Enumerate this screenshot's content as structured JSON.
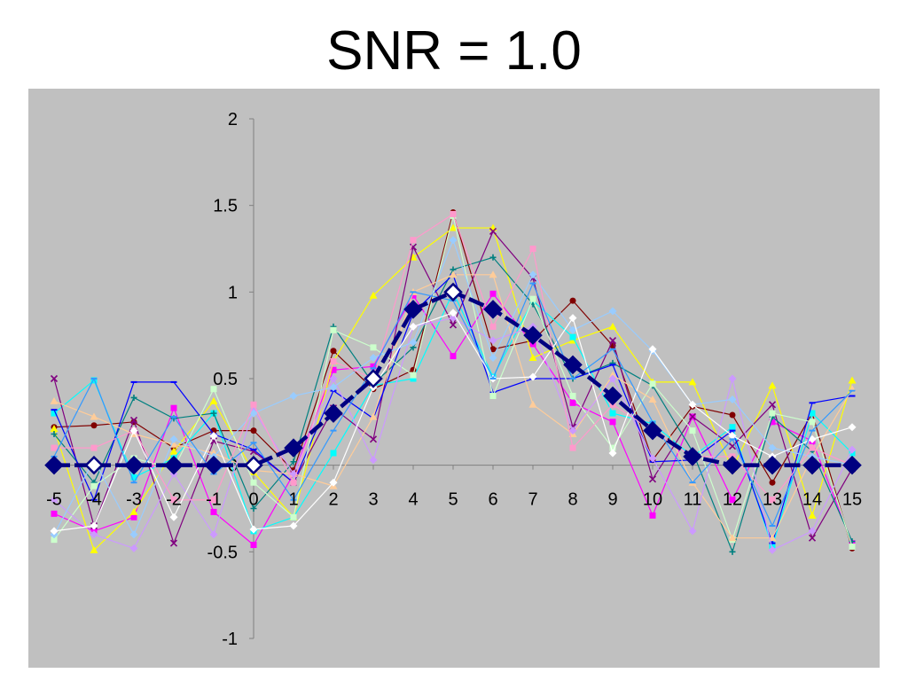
{
  "chart_data": {
    "type": "line",
    "title": "SNR = 1.0",
    "xlabel": "",
    "ylabel": "",
    "x": [
      -5,
      -4,
      -3,
      -2,
      -1,
      0,
      1,
      2,
      3,
      4,
      5,
      6,
      7,
      8,
      9,
      10,
      11,
      12,
      13,
      14,
      15
    ],
    "xlim": [
      -5,
      15
    ],
    "ylim": [
      -1,
      2
    ],
    "yticks": [
      -1,
      -0.5,
      0,
      0.5,
      1,
      1.5,
      2
    ],
    "ytick_labels": [
      "-1",
      "-0.5",
      "0",
      "0.5",
      "1",
      "1.5",
      "2"
    ],
    "xtick_labels": [
      "-5",
      "-4",
      "-3",
      "-2",
      "-1",
      "0",
      "1",
      "2",
      "3",
      "4",
      "5",
      "6",
      "7",
      "8",
      "9",
      "10",
      "11",
      "12",
      "13",
      "14",
      "15"
    ],
    "grid": false,
    "legend": "none",
    "reference_series": {
      "color": "#000080",
      "values": [
        0,
        0,
        0,
        0,
        0,
        0,
        0.1,
        0.3,
        0.5,
        0.9,
        1.0,
        0.9,
        0.75,
        0.58,
        0.4,
        0.2,
        0.05,
        0,
        0,
        0,
        0
      ]
    },
    "series": [
      {
        "color": "#ff00ff",
        "marker": "square",
        "values": [
          -0.28,
          -0.38,
          -0.3,
          0.33,
          -0.27,
          -0.46,
          -0.05,
          0.55,
          0.57,
          0.98,
          0.63,
          0.99,
          0.7,
          0.36,
          0.25,
          -0.29,
          0.28,
          -0.2,
          0.25,
          0.14,
          -0.45
        ]
      },
      {
        "color": "#800000",
        "marker": "circle",
        "values": [
          0.22,
          0.23,
          0.25,
          0.1,
          0.2,
          0.2,
          -0.03,
          0.66,
          0.44,
          0.55,
          1.46,
          0.67,
          0.72,
          0.95,
          0.69,
          0.03,
          0.34,
          0.29,
          -0.1,
          0.3,
          -0.48
        ]
      },
      {
        "color": "#ffff00",
        "marker": "triangle",
        "values": [
          0.21,
          -0.49,
          -0.27,
          0.08,
          0.37,
          -0.04,
          -0.3,
          0.6,
          0.98,
          1.2,
          1.37,
          1.37,
          0.62,
          0.72,
          0.8,
          0.48,
          0.48,
          -0.02,
          0.46,
          -0.29,
          0.49
        ]
      },
      {
        "color": "#00ffff",
        "marker": "square",
        "values": [
          0.3,
          0.49,
          -0.07,
          0.04,
          0.3,
          -0.38,
          -0.3,
          0.07,
          0.46,
          0.5,
          1.0,
          0.51,
          0.95,
          0.74,
          0.3,
          0.24,
          0.05,
          0.22,
          -0.47,
          0.3,
          0.07
        ]
      },
      {
        "color": "#800080",
        "marker": "x",
        "values": [
          0.5,
          -0.35,
          0.26,
          -0.45,
          0.14,
          0.08,
          -0.1,
          0.33,
          0.15,
          1.26,
          0.81,
          1.35,
          1.08,
          0.22,
          0.72,
          -0.08,
          0.28,
          0.11,
          0.35,
          -0.42,
          -0.02
        ]
      },
      {
        "color": "#008080",
        "marker": "plus",
        "values": [
          0.18,
          -0.1,
          0.39,
          0.27,
          0.3,
          -0.25,
          0.02,
          0.8,
          0.47,
          0.68,
          1.13,
          1.2,
          0.93,
          0.5,
          0.59,
          0.46,
          0.08,
          -0.5,
          0.28,
          0.08,
          -0.44
        ]
      },
      {
        "color": "#0000ff",
        "marker": "dash",
        "values": [
          0.32,
          -0.2,
          0.48,
          0.48,
          0.18,
          0.09,
          -0.1,
          0.43,
          0.27,
          0.88,
          1.1,
          0.42,
          0.5,
          0.5,
          0.58,
          0.02,
          0.03,
          0.2,
          -0.45,
          0.36,
          0.4
        ]
      },
      {
        "color": "#ccffcc",
        "marker": "square",
        "values": [
          -0.43,
          -0.12,
          0.04,
          -0.02,
          0.44,
          -0.1,
          -0.3,
          0.78,
          0.68,
          0.52,
          1.44,
          0.4,
          0.96,
          0.4,
          0.1,
          0.47,
          0.2,
          -0.43,
          0.3,
          0.25,
          -0.47
        ]
      },
      {
        "color": "#ffcc99",
        "marker": "triangle",
        "values": [
          0.37,
          0.28,
          0.18,
          0.12,
          0.07,
          -0.03,
          -0.05,
          -0.12,
          0.28,
          1.0,
          1.1,
          1.1,
          0.35,
          0.18,
          0.52,
          0.38,
          -0.1,
          -0.42,
          -0.42,
          0.05,
          0.44
        ]
      },
      {
        "color": "#cc99ff",
        "marker": "diamond",
        "values": [
          -0.2,
          -0.4,
          -0.48,
          -0.05,
          -0.4,
          0.32,
          -0.05,
          0.5,
          0.03,
          0.8,
          0.85,
          0.72,
          0.8,
          0.2,
          0.5,
          0.04,
          -0.38,
          0.5,
          -0.49,
          -0.38,
          0.09
        ]
      },
      {
        "color": "#99ccff",
        "marker": "diamond",
        "values": [
          -0.4,
          0.03,
          -0.4,
          0.15,
          0.05,
          0.3,
          0.4,
          0.45,
          0.62,
          0.71,
          1.3,
          0.62,
          1.1,
          0.78,
          0.89,
          0.66,
          0.35,
          0.38,
          0.1,
          0.05,
          0.0
        ]
      },
      {
        "color": "#ff99cc",
        "marker": "square",
        "values": [
          0.1,
          0.1,
          0.2,
          -0.2,
          -0.2,
          0.35,
          -0.1,
          0.6,
          0.5,
          1.3,
          1.45,
          0.8,
          1.25,
          0.1,
          0.35,
          0.2,
          0.05,
          0.05,
          -0.2,
          0.1,
          0.0
        ]
      },
      {
        "color": "#ffffff",
        "marker": "diamond",
        "values": [
          -0.38,
          -0.35,
          0.2,
          -0.3,
          0.17,
          -0.37,
          -0.35,
          -0.1,
          0.45,
          0.8,
          0.88,
          0.5,
          0.51,
          0.85,
          0.07,
          0.67,
          0.35,
          0.17,
          0.05,
          0.15,
          0.22
        ]
      },
      {
        "color": "#3399ff",
        "marker": "dash",
        "values": [
          0.05,
          0.5,
          -0.1,
          0.28,
          -0.05,
          0.13,
          -0.2,
          0.2,
          0.56,
          1.0,
          0.95,
          0.5,
          1.05,
          0.5,
          0.67,
          0.25,
          -0.1,
          0.15,
          -0.35,
          0.2,
          0.43
        ]
      }
    ]
  }
}
